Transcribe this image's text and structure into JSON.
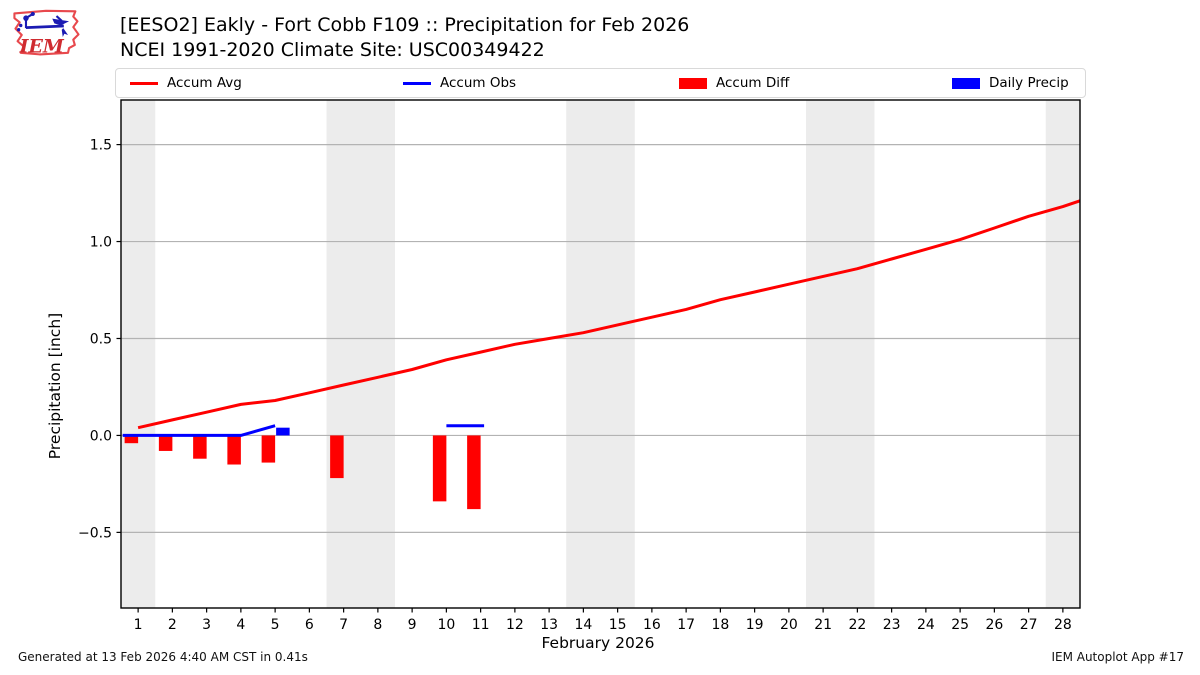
{
  "header": {
    "title_line1": "[EESO2] Eakly - Fort Cobb F109 :: Precipitation for Feb 2026",
    "title_line2": "NCEI 1991-2020 Climate Site: USC00349422",
    "logo_text": "IEM"
  },
  "legend": {
    "items": [
      {
        "label": "Accum Avg",
        "swatch": "line",
        "color": "#ff0000"
      },
      {
        "label": "Accum Obs",
        "swatch": "line",
        "color": "#0000ff"
      },
      {
        "label": "Accum Diff",
        "swatch": "rect",
        "color": "#ff0000"
      },
      {
        "label": "Daily Precip",
        "swatch": "rect",
        "color": "#0000ff"
      }
    ]
  },
  "chart_data": {
    "type": "line+bar",
    "title": "[EESO2] Eakly - Fort Cobb F109 :: Precipitation for Feb 2026",
    "subtitle": "NCEI 1991-2020 Climate Site: USC00349422",
    "xlabel": "February 2026",
    "ylabel": "Precipitation [inch]",
    "xlim": [
      0.5,
      28.5
    ],
    "ylim": [
      -0.89,
      1.73
    ],
    "x_ticks": [
      1,
      2,
      3,
      4,
      5,
      6,
      7,
      8,
      9,
      10,
      11,
      12,
      13,
      14,
      15,
      16,
      17,
      18,
      19,
      20,
      21,
      22,
      23,
      24,
      25,
      26,
      27,
      28
    ],
    "y_ticks": [
      {
        "v": 1.5,
        "label": "1.5"
      },
      {
        "v": 1.0,
        "label": "1.0"
      },
      {
        "v": 0.5,
        "label": "0.5"
      },
      {
        "v": 0.0,
        "label": "0.0"
      },
      {
        "v": -0.5,
        "label": "−0.5"
      }
    ],
    "grid": "horizontal",
    "legend_position": "top",
    "weekend_bands": [
      [
        0.5,
        1.5
      ],
      [
        6.5,
        8.5
      ],
      [
        13.5,
        15.5
      ],
      [
        20.5,
        22.5
      ],
      [
        27.5,
        28.5
      ]
    ],
    "colors": {
      "band": "#ececec",
      "grid": "#b3b3b3",
      "frame": "#000000",
      "avg": "#ff0000",
      "obs": "#0000ff"
    },
    "series": [
      {
        "name": "Accum Avg",
        "type": "line",
        "color": "#ff0000",
        "points": [
          [
            1,
            0.04
          ],
          [
            2,
            0.08
          ],
          [
            3,
            0.12
          ],
          [
            4,
            0.16
          ],
          [
            5,
            0.18
          ],
          [
            6,
            0.22
          ],
          [
            7,
            0.26
          ],
          [
            8,
            0.3
          ],
          [
            9,
            0.34
          ],
          [
            10,
            0.39
          ],
          [
            11,
            0.43
          ],
          [
            12,
            0.47
          ],
          [
            13,
            0.5
          ],
          [
            14,
            0.53
          ],
          [
            15,
            0.57
          ],
          [
            16,
            0.61
          ],
          [
            17,
            0.65
          ],
          [
            18,
            0.7
          ],
          [
            19,
            0.74
          ],
          [
            20,
            0.78
          ],
          [
            21,
            0.82
          ],
          [
            22,
            0.86
          ],
          [
            23,
            0.91
          ],
          [
            24,
            0.96
          ],
          [
            25,
            1.01
          ],
          [
            26,
            1.07
          ],
          [
            27,
            1.13
          ],
          [
            28,
            1.18
          ],
          [
            28.5,
            1.21
          ]
        ]
      },
      {
        "name": "Accum Obs",
        "type": "line",
        "color": "#0000ff",
        "segments": [
          [
            [
              0.55,
              0.0
            ],
            [
              4,
              0.0
            ],
            [
              5,
              0.05
            ]
          ],
          [
            [
              10,
              0.05
            ],
            [
              11.1,
              0.05
            ]
          ]
        ]
      },
      {
        "name": "Accum Diff",
        "type": "bar",
        "color": "#ff0000",
        "align": "right",
        "values": [
          [
            1,
            -0.04
          ],
          [
            2,
            -0.08
          ],
          [
            3,
            -0.12
          ],
          [
            4,
            -0.15
          ],
          [
            5,
            -0.14
          ],
          [
            7,
            -0.22
          ],
          [
            10,
            -0.34
          ],
          [
            11,
            -0.38
          ]
        ]
      },
      {
        "name": "Daily Precip",
        "type": "bar",
        "color": "#0000ff",
        "align": "left",
        "values": [
          [
            5,
            0.04
          ]
        ]
      }
    ]
  },
  "footer": {
    "left": "Generated at 13 Feb 2026 4:40 AM CST in 0.41s",
    "right": "IEM Autoplot App #17"
  }
}
